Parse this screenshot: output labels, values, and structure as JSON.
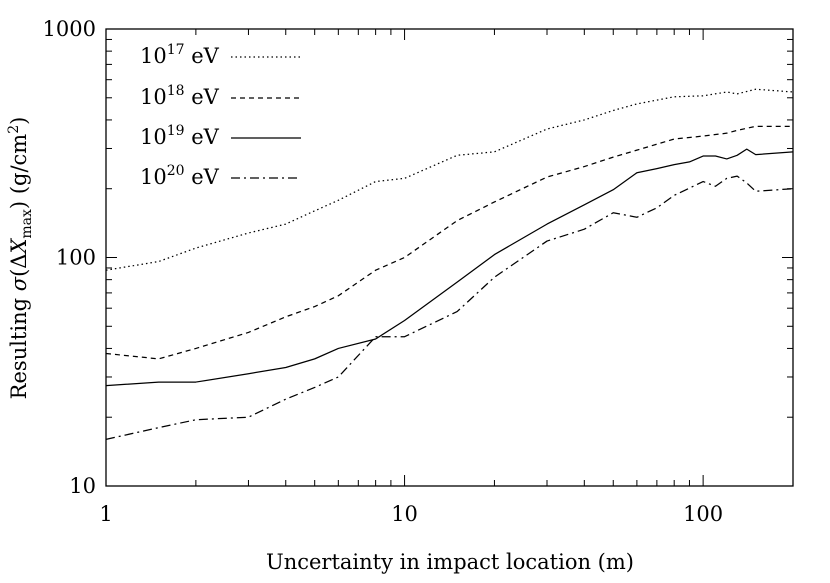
{
  "chart_data": {
    "type": "line",
    "title": "",
    "xlabel": "Uncertainty in impact location (m)",
    "ylabel_parts": {
      "prefix": "Resulting ",
      "sigma": "σ",
      "open": "(",
      "delta": "Δ",
      "x": "X",
      "sub": "max",
      "close": ")",
      "units_pre": " (g/cm",
      "units_sup": "2",
      "units_post": ")"
    },
    "xscale": "log",
    "yscale": "log",
    "xlim": [
      1,
      200
    ],
    "ylim": [
      10,
      1000
    ],
    "xticks": [
      {
        "value": 1,
        "label": "1"
      },
      {
        "value": 10,
        "label": "10"
      },
      {
        "value": 100,
        "label": "100"
      }
    ],
    "yticks": [
      {
        "value": 10,
        "label": "10"
      },
      {
        "value": 100,
        "label": "100"
      },
      {
        "value": 1000,
        "label": "1000"
      }
    ],
    "legend_position": "top-left",
    "series": [
      {
        "name": "1e17",
        "legend": {
          "base": "10",
          "exp": "17",
          "unit": " eV"
        },
        "style": "dotted",
        "x": [
          1,
          1.5,
          2,
          3,
          4,
          5,
          6,
          8,
          10,
          15,
          20,
          30,
          40,
          50,
          60,
          80,
          100,
          120,
          130,
          150,
          200
        ],
        "y": [
          88,
          96,
          110,
          128,
          140,
          160,
          178,
          215,
          222,
          280,
          290,
          365,
          400,
          440,
          470,
          505,
          510,
          530,
          520,
          545,
          530
        ]
      },
      {
        "name": "1e18",
        "legend": {
          "base": "10",
          "exp": "18",
          "unit": " eV"
        },
        "style": "dashed",
        "x": [
          1,
          1.5,
          2,
          3,
          4,
          5,
          6,
          8,
          10,
          15,
          20,
          30,
          40,
          50,
          60,
          80,
          100,
          120,
          130,
          150,
          200
        ],
        "y": [
          38,
          36,
          40,
          47,
          55,
          61,
          68,
          88,
          100,
          145,
          175,
          225,
          250,
          275,
          295,
          330,
          340,
          350,
          360,
          375,
          375
        ]
      },
      {
        "name": "1e19",
        "legend": {
          "base": "10",
          "exp": "19",
          "unit": " eV"
        },
        "style": "solid",
        "x": [
          1,
          1.5,
          2,
          3,
          4,
          5,
          6,
          8,
          10,
          15,
          20,
          30,
          40,
          50,
          60,
          70,
          80,
          90,
          100,
          110,
          120,
          130,
          140,
          150,
          200
        ],
        "y": [
          27.5,
          28.5,
          28.5,
          31,
          33,
          36,
          40,
          44,
          53,
          78,
          103,
          140,
          170,
          198,
          235,
          245,
          255,
          262,
          278,
          278,
          270,
          280,
          298,
          282,
          290
        ]
      },
      {
        "name": "1e20",
        "legend": {
          "base": "10",
          "exp": "20",
          "unit": " eV"
        },
        "style": "dashdot",
        "x": [
          1,
          1.5,
          2,
          3,
          4,
          5,
          6,
          8,
          10,
          15,
          20,
          30,
          40,
          50,
          60,
          70,
          80,
          100,
          110,
          120,
          130,
          140,
          150,
          200
        ],
        "y": [
          16,
          18,
          19.5,
          20,
          24,
          27,
          30,
          45,
          45,
          58,
          82,
          118,
          133,
          157,
          150,
          165,
          187,
          215,
          205,
          222,
          227,
          212,
          195,
          200
        ]
      }
    ]
  }
}
